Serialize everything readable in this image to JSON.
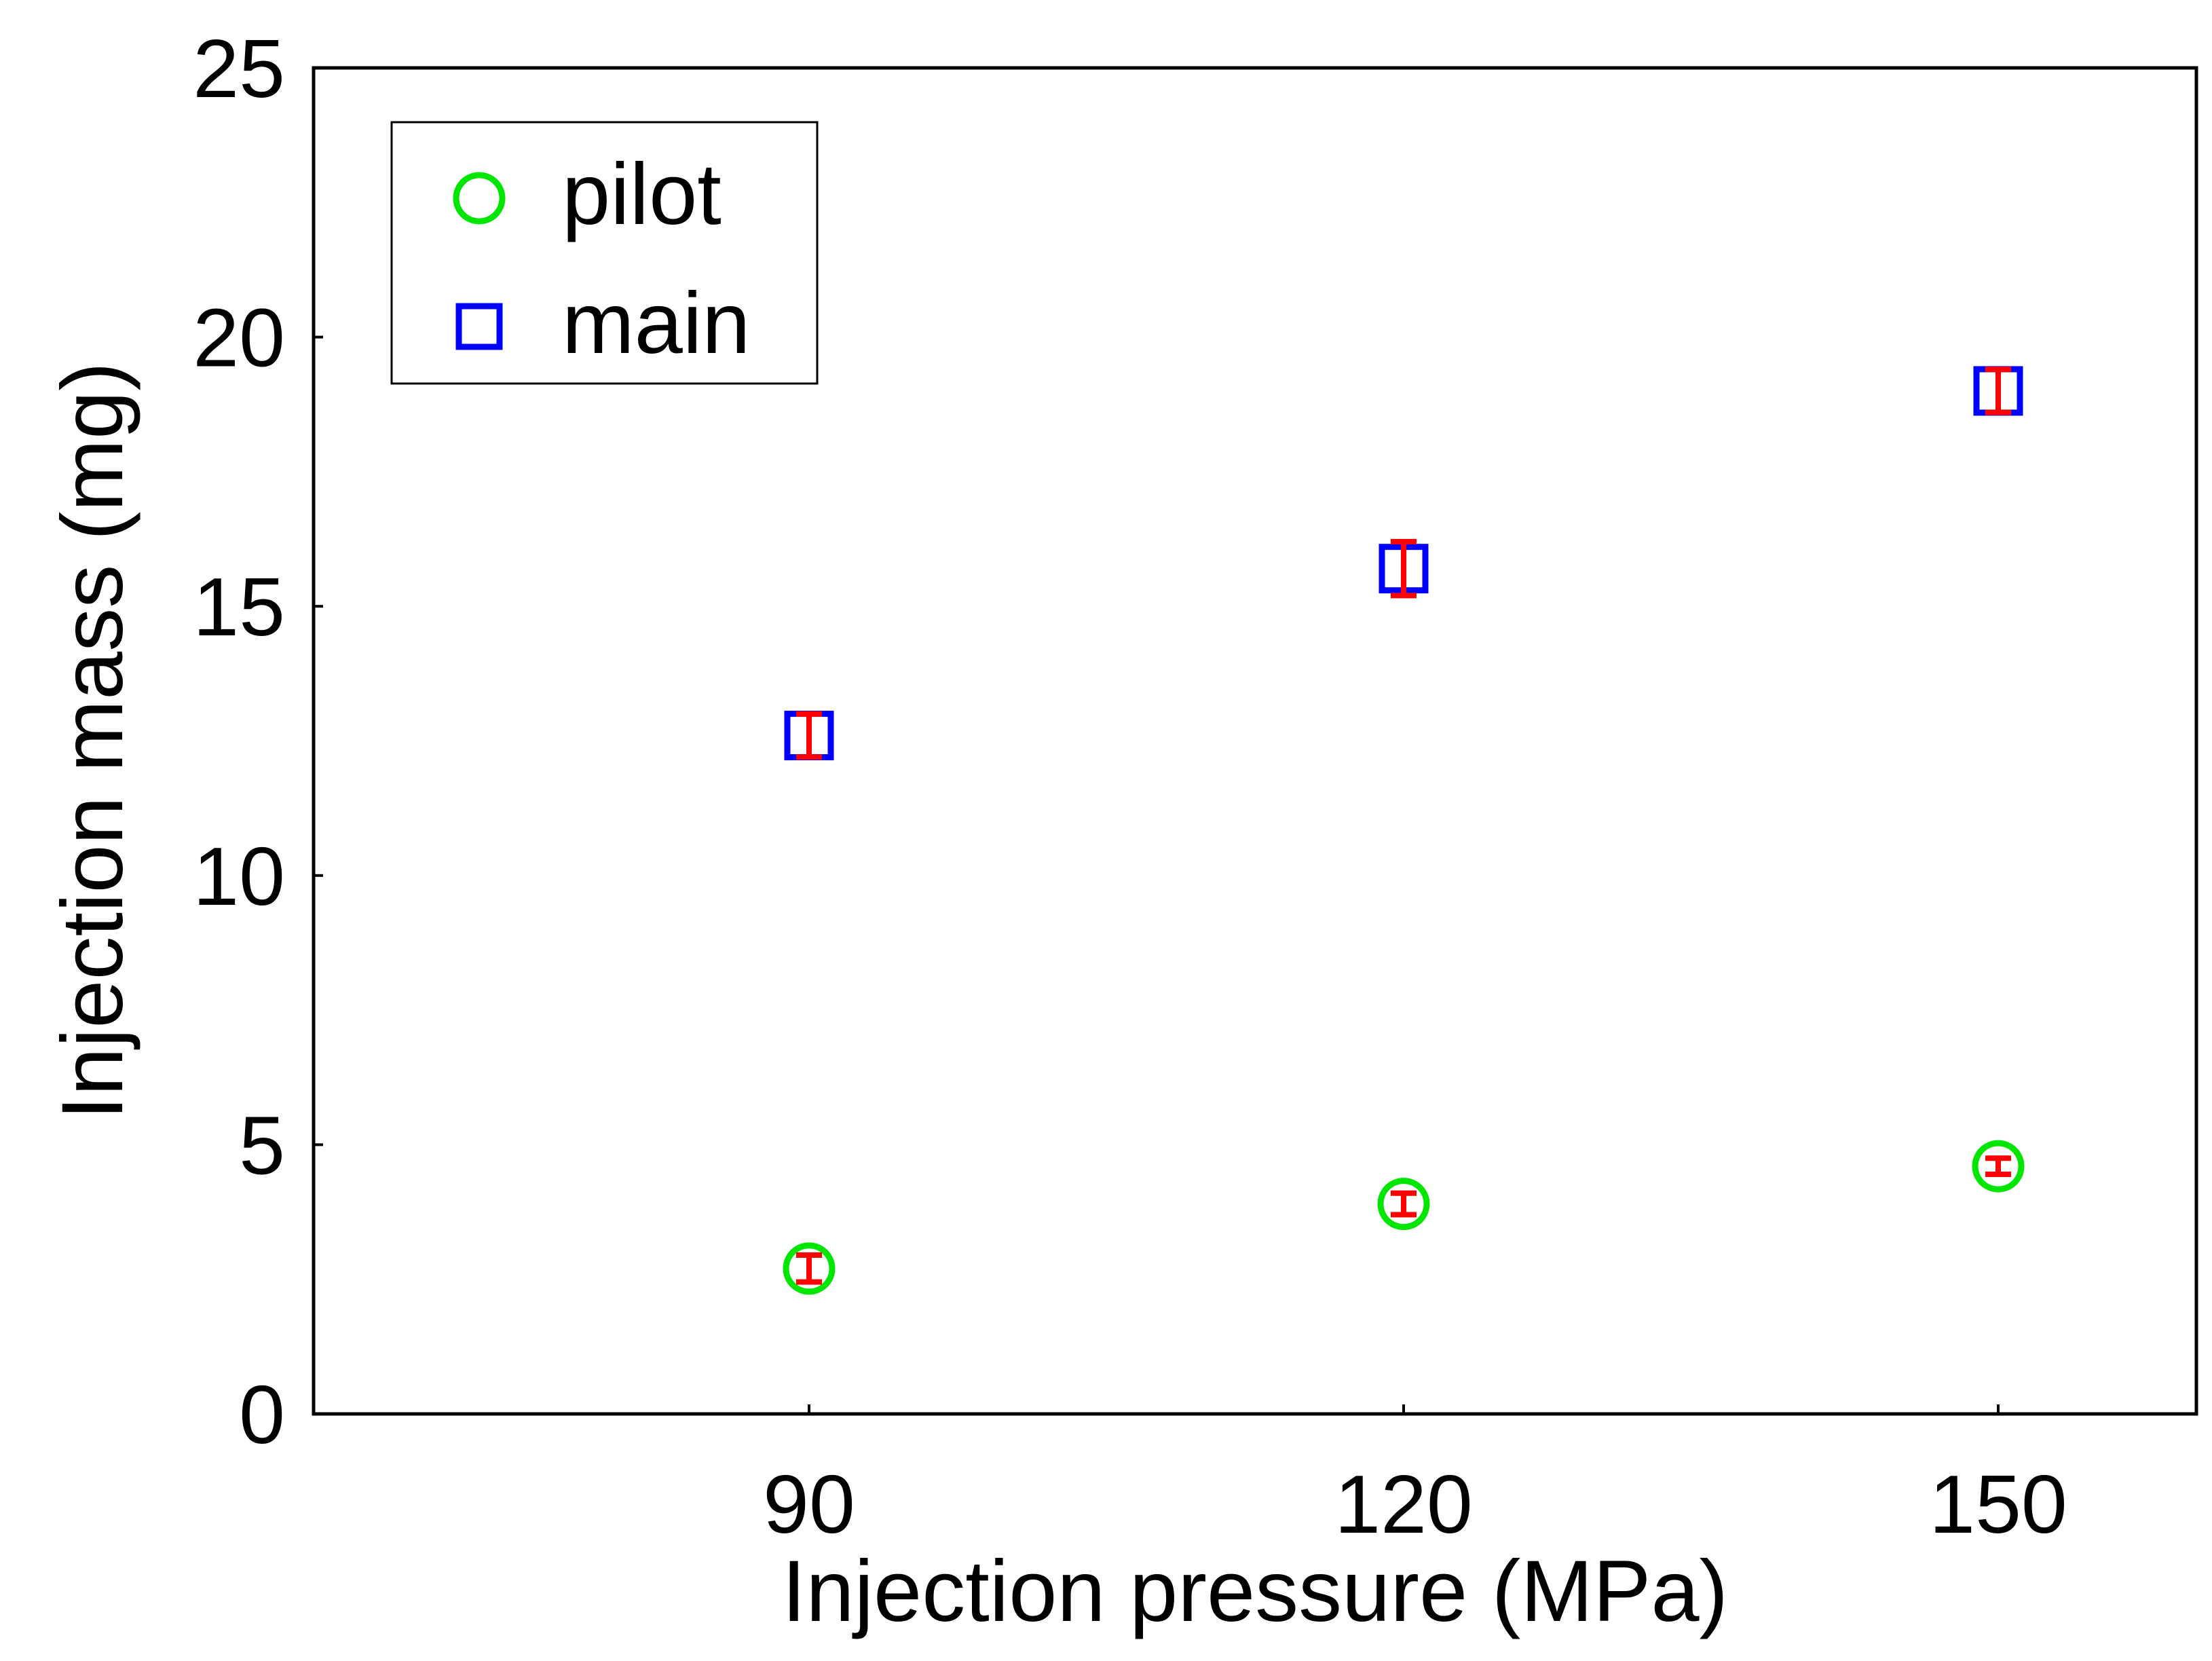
{
  "chart_data": {
    "type": "scatter",
    "title": "",
    "xlabel": "Injection pressure (MPa)",
    "ylabel": "Injection mass (mg)",
    "xlim": [
      65,
      160
    ],
    "ylim": [
      0,
      25
    ],
    "x_ticks": [
      90,
      120,
      150
    ],
    "y_ticks": [
      0,
      5,
      10,
      15,
      20,
      25
    ],
    "x": [
      90,
      120,
      150
    ],
    "legend_position": "top-left",
    "grid": false,
    "series": [
      {
        "name": "pilot",
        "marker": "circle",
        "color": "#00e600",
        "values": [
          2.7,
          3.9,
          4.6
        ],
        "error": [
          0.25,
          0.2,
          0.15
        ]
      },
      {
        "name": "main",
        "marker": "square",
        "color": "#0000ff",
        "values": [
          12.6,
          15.7,
          19.0
        ],
        "error": [
          0.4,
          0.5,
          0.4
        ]
      }
    ],
    "error_bar_color": "#ff0000"
  }
}
